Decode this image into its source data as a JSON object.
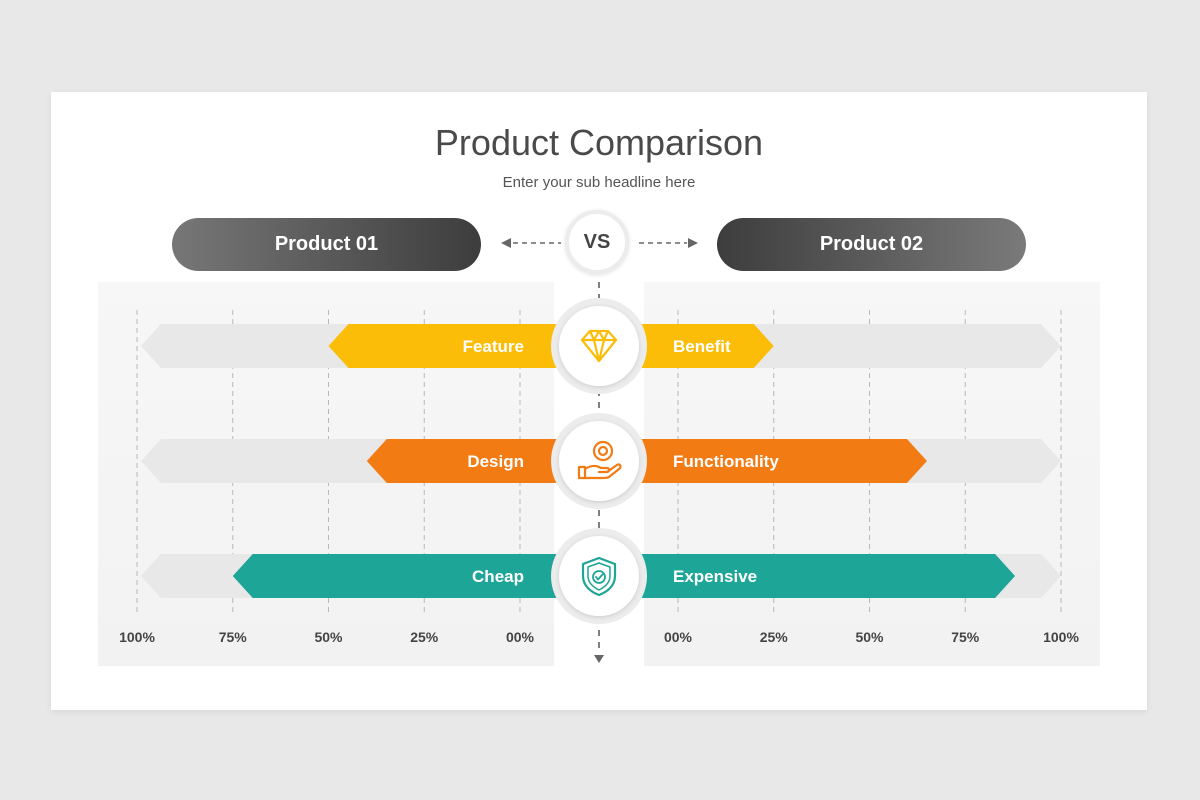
{
  "slide": {
    "title": "Product Comparison",
    "subtitle": "Enter your sub headline here",
    "vs_label": "VS"
  },
  "products": {
    "left": "Product 01",
    "right": "Product 02"
  },
  "chart_data": {
    "type": "bar",
    "layout": "mirrored-horizontal",
    "left_ticks": [
      "100%",
      "75%",
      "50%",
      "25%",
      "00%"
    ],
    "right_ticks": [
      "00%",
      "25%",
      "50%",
      "75%",
      "100%"
    ],
    "xlim": [
      0,
      100
    ],
    "rows": [
      {
        "icon": "diamond-icon",
        "color": "#fbbd08",
        "left_label": "Feature",
        "left_value": 50,
        "right_label": "Benefit",
        "right_value": 25
      },
      {
        "icon": "hand-coin-icon",
        "color": "#f27b13",
        "left_label": "Design",
        "left_value": 40,
        "right_label": "Functionality",
        "right_value": 65
      },
      {
        "icon": "shield-check-icon",
        "color": "#1da597",
        "left_label": "Cheap",
        "left_value": 75,
        "right_label": "Expensive",
        "right_value": 88
      }
    ],
    "track_color": "#e8e8e8",
    "grid": true
  }
}
